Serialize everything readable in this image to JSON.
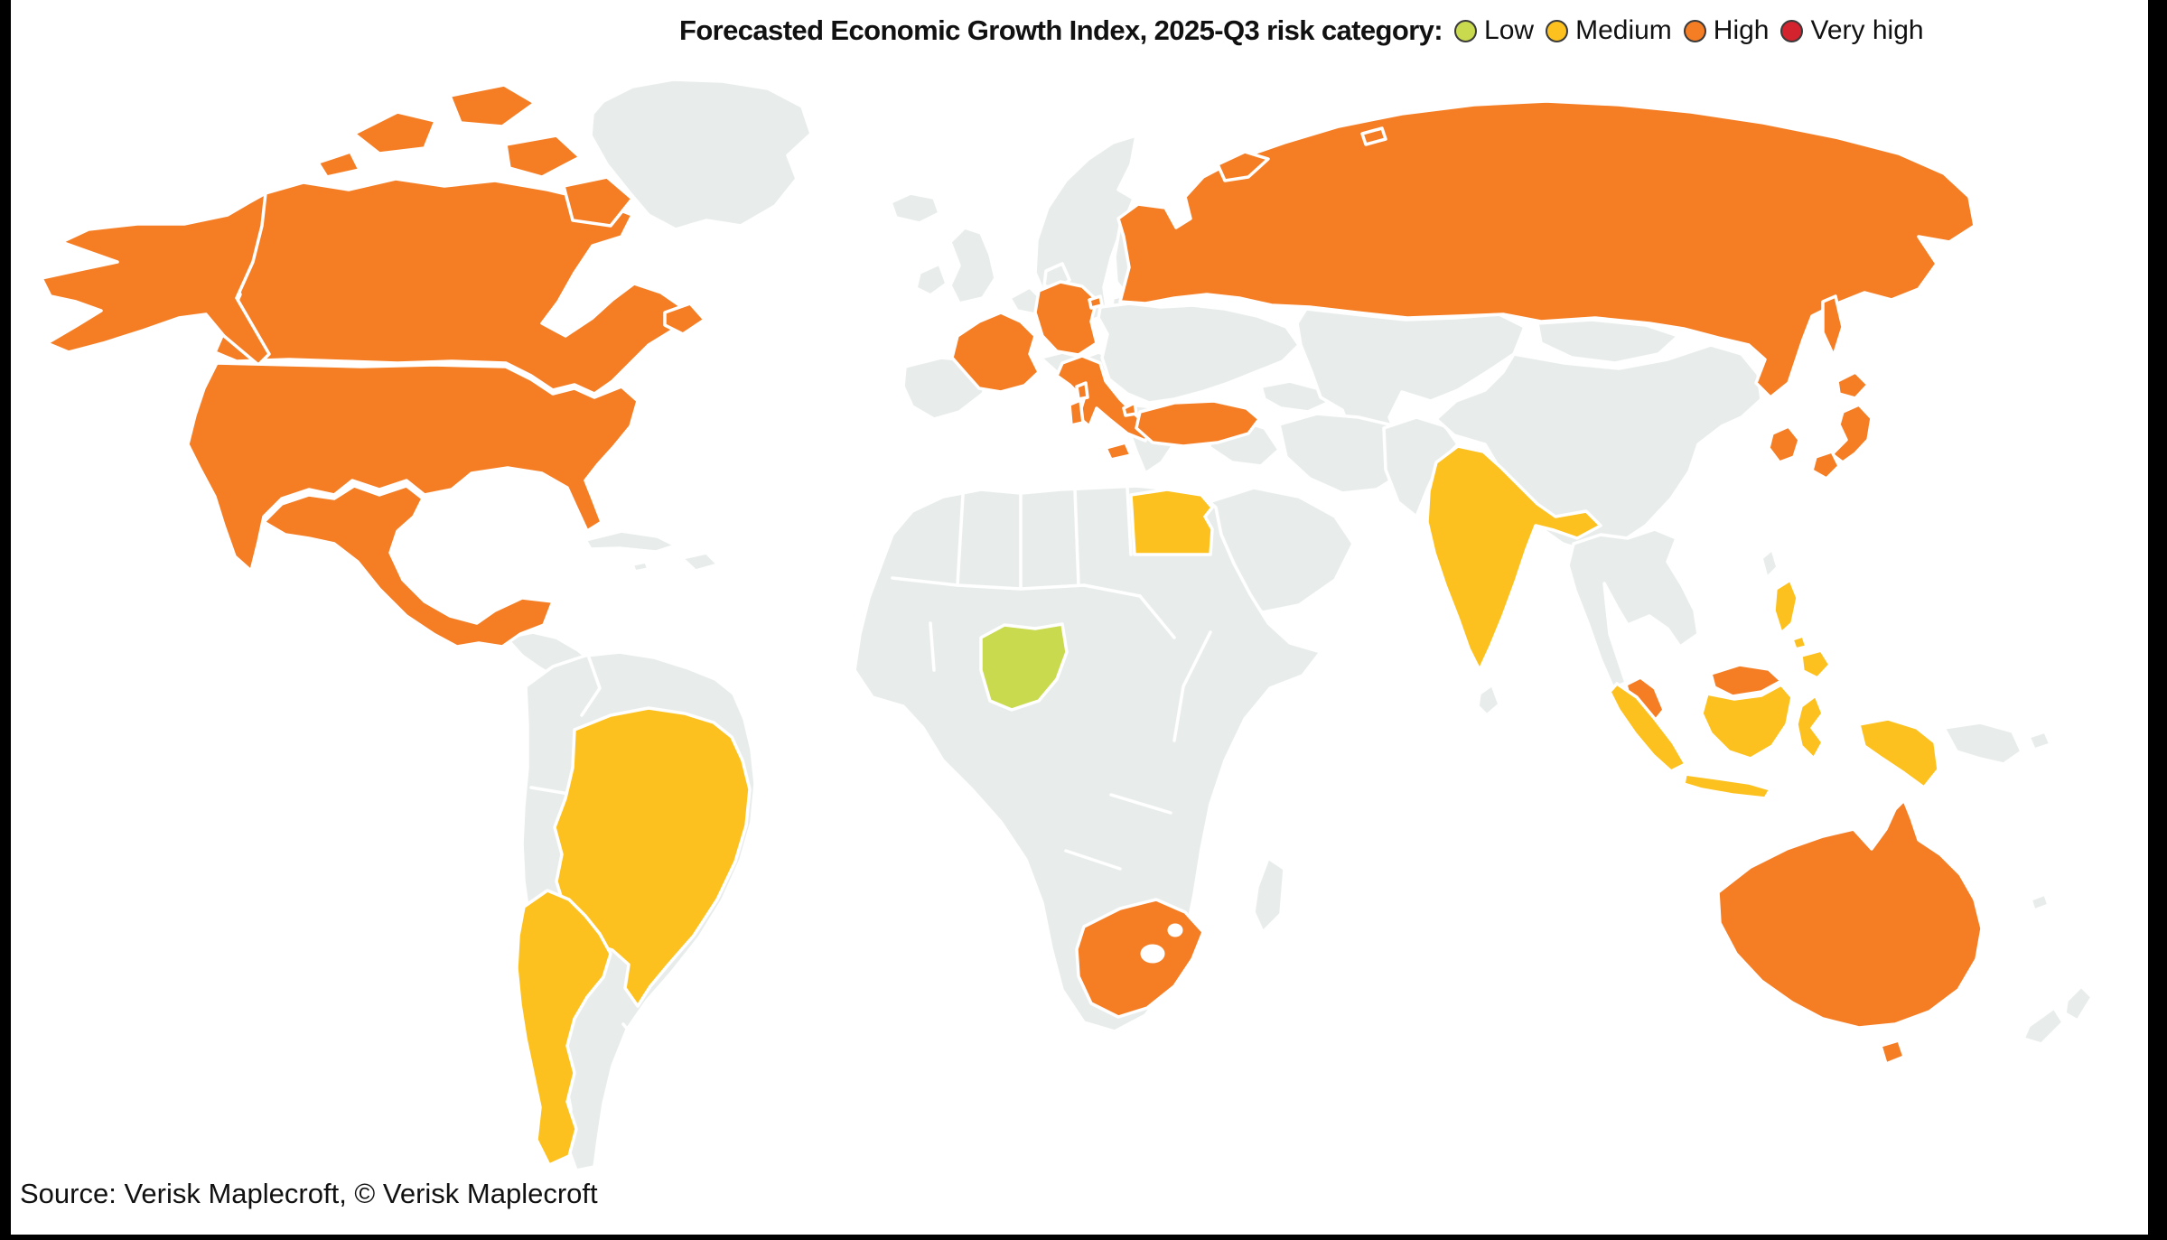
{
  "header": {
    "title": "Forecasted Economic Growth Index, 2025-Q3 risk category:"
  },
  "legend": {
    "items": [
      {
        "label": "Low",
        "color": "#c9da4f"
      },
      {
        "label": "Medium",
        "color": "#fcc11e"
      },
      {
        "label": "High",
        "color": "#f57d24"
      },
      {
        "label": "Very high",
        "color": "#d2232e"
      }
    ]
  },
  "footer": {
    "source": "Source: Verisk Maplecroft, © Verisk Maplecroft"
  },
  "map": {
    "ocean_color": "#ffffff",
    "land_color": "#e8edeb",
    "border_color": "#ffffff",
    "category_colors": {
      "Low": "#c9da4f",
      "Medium": "#fcc11e",
      "High": "#f57d24",
      "Very high": "#d2232e"
    },
    "country_categories": {
      "canada": "High",
      "usa": "High",
      "mexico": "High",
      "france": "High",
      "germany": "High",
      "italy": "High",
      "turkey": "High",
      "russia": "High",
      "south-korea": "High",
      "japan": "High",
      "malaysia": "High",
      "south-africa": "High",
      "australia": "High",
      "brazil": "Medium",
      "argentina": "Medium",
      "egypt": "Medium",
      "india": "Medium",
      "philippines": "Medium",
      "indonesia": "Medium",
      "nigeria": "Low"
    }
  },
  "chart_data": {
    "type": "choropleth",
    "title": "Forecasted Economic Growth Index, 2025-Q3 risk category:",
    "legend": [
      {
        "label": "Low",
        "color": "#c9da4f"
      },
      {
        "label": "Medium",
        "color": "#fcc11e"
      },
      {
        "label": "High",
        "color": "#f57d24"
      },
      {
        "label": "Very high",
        "color": "#d2232e"
      }
    ],
    "groups": {
      "Low": [
        "Nigeria"
      ],
      "Medium": [
        "Brazil",
        "Argentina",
        "Egypt",
        "India",
        "Philippines",
        "Indonesia"
      ],
      "High": [
        "Canada",
        "United States",
        "Mexico",
        "France",
        "Germany",
        "Italy",
        "Turkey",
        "Russia",
        "South Korea",
        "Japan",
        "Malaysia",
        "South Africa",
        "Australia"
      ],
      "Very high": []
    },
    "source": "Source: Verisk Maplecroft, © Verisk Maplecroft"
  }
}
